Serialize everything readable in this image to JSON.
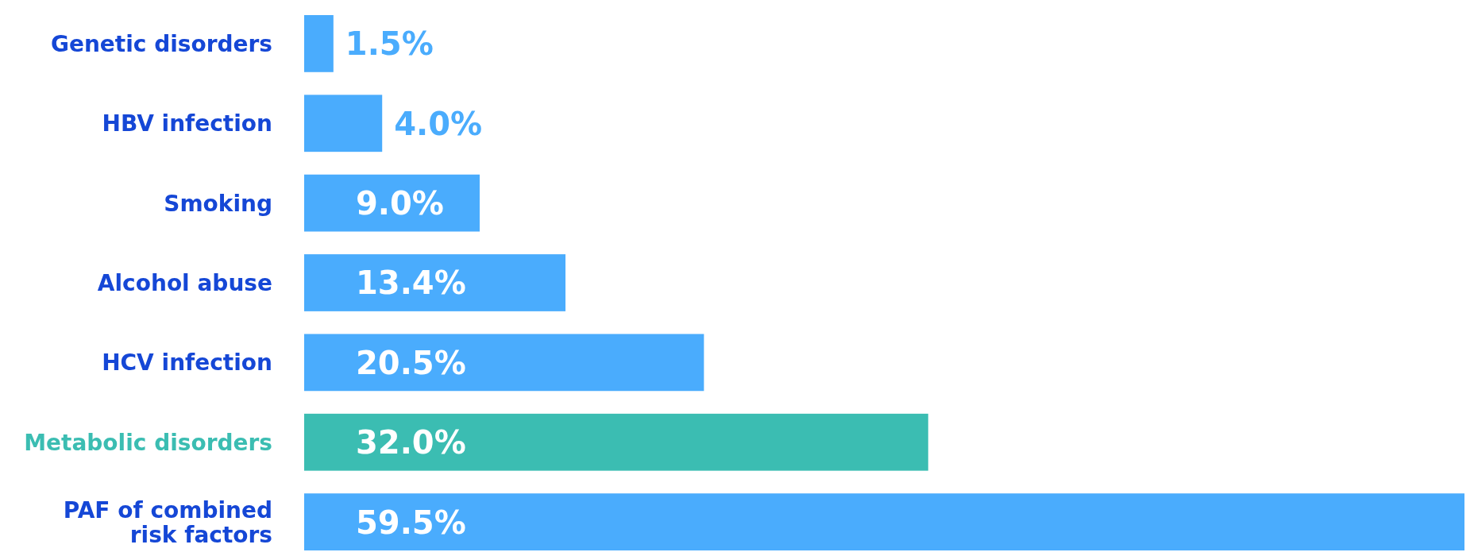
{
  "chart_data": {
    "type": "bar",
    "orientation": "horizontal",
    "categories": [
      "Genetic disorders",
      "HBV infection",
      "Smoking",
      "Alcohol abuse",
      "HCV infection",
      "Metabolic disorders",
      "PAF of combined risk factors"
    ],
    "values": [
      1.5,
      4.0,
      9.0,
      13.4,
      20.5,
      32.0,
      59.5
    ],
    "colors": [
      "#4aacfd",
      "#4aacfd",
      "#4aacfd",
      "#4aacfd",
      "#4aacfd",
      "#3bbdb2",
      "#4aacfd"
    ],
    "value_labels": [
      "1.5%",
      "4.0%",
      "9.0%",
      "13.4%",
      "20.5%",
      "32.0%",
      "59.5%"
    ]
  }
}
